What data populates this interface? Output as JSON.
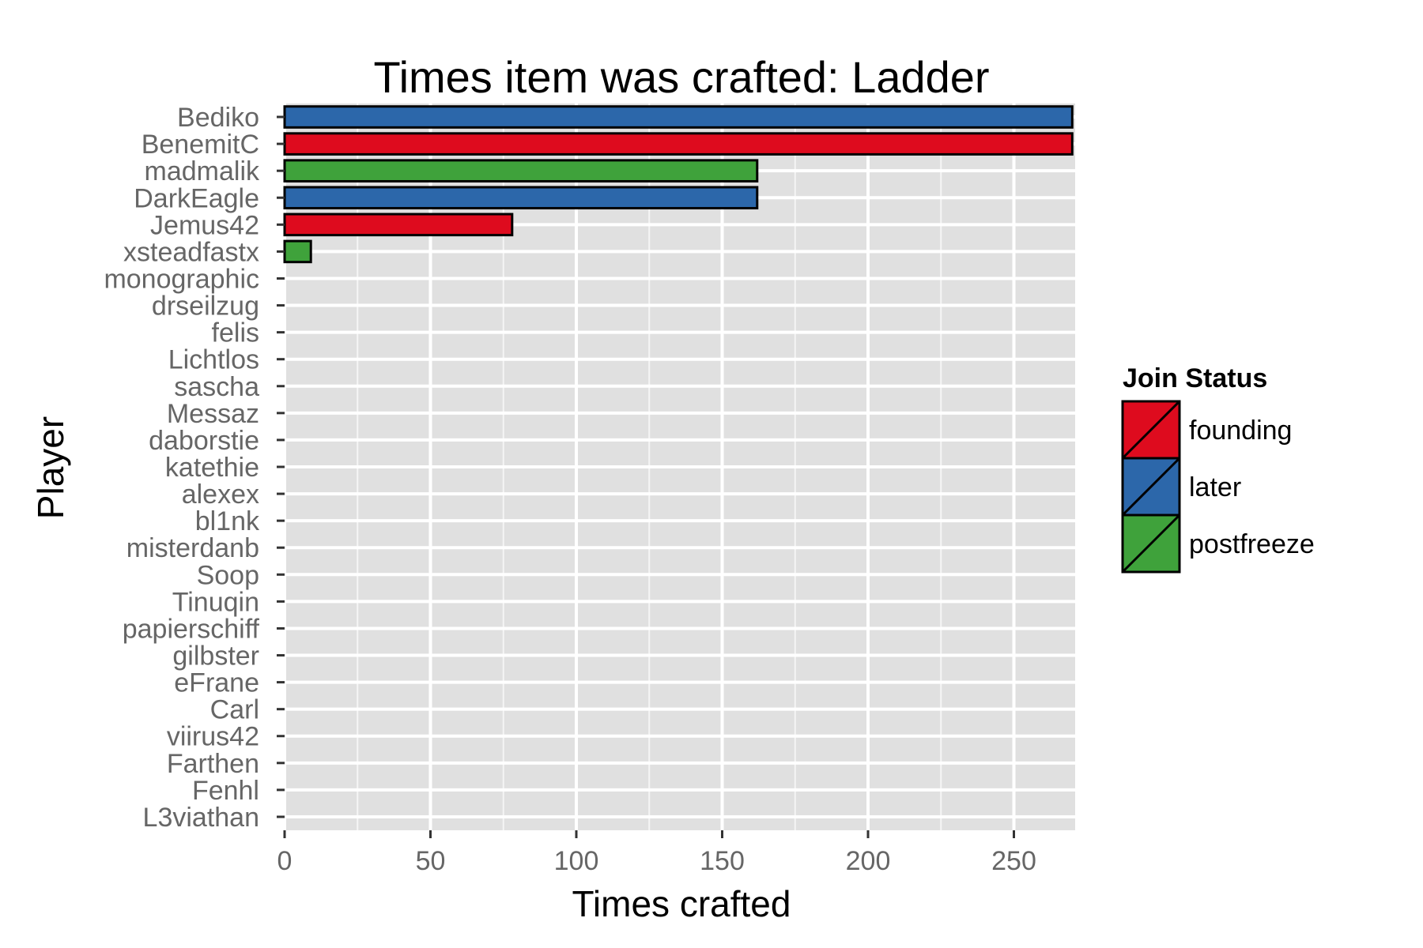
{
  "chart_data": {
    "type": "bar",
    "orientation": "horizontal",
    "title": "Times item was crafted: Ladder",
    "xlabel": "Times crafted",
    "ylabel": "Player",
    "xlim": [
      0,
      271
    ],
    "x_ticks": [
      0,
      50,
      100,
      150,
      200,
      250
    ],
    "grid": true,
    "legend": {
      "title": "Join Status",
      "placement": "right",
      "entries": [
        "founding",
        "later",
        "postfreeze"
      ]
    },
    "colors": {
      "founding": "#de0b1e",
      "later": "#2c67aa",
      "postfreeze": "#3fa23b"
    },
    "categories": [
      "Bediko",
      "BenemitC",
      "madmalik",
      "DarkEagle",
      "Jemus42",
      "xsteadfastx",
      "monographic",
      "drseilzug",
      "felis",
      "Lichtlos",
      "sascha",
      "Messaz",
      "daborstie",
      "katethie",
      "alexex",
      "bl1nk",
      "misterdanb",
      "Soop",
      "Tinuqin",
      "papierschiff",
      "gilbster",
      "eFrane",
      "Carl",
      "viirus42",
      "Farthen",
      "Fenhl",
      "L3viathan"
    ],
    "values": [
      270,
      270,
      162,
      162,
      78,
      9,
      0,
      0,
      0,
      0,
      0,
      0,
      0,
      0,
      0,
      0,
      0,
      0,
      0,
      0,
      0,
      0,
      0,
      0,
      0,
      0,
      0
    ],
    "status": [
      "later",
      "founding",
      "postfreeze",
      "later",
      "founding",
      "postfreeze",
      "later",
      "later",
      "founding",
      "later",
      "founding",
      "later",
      "later",
      "founding",
      "founding",
      "later",
      "later",
      "later",
      "later",
      "later",
      "later",
      "later",
      "later",
      "later",
      "founding",
      "later",
      "later"
    ]
  }
}
